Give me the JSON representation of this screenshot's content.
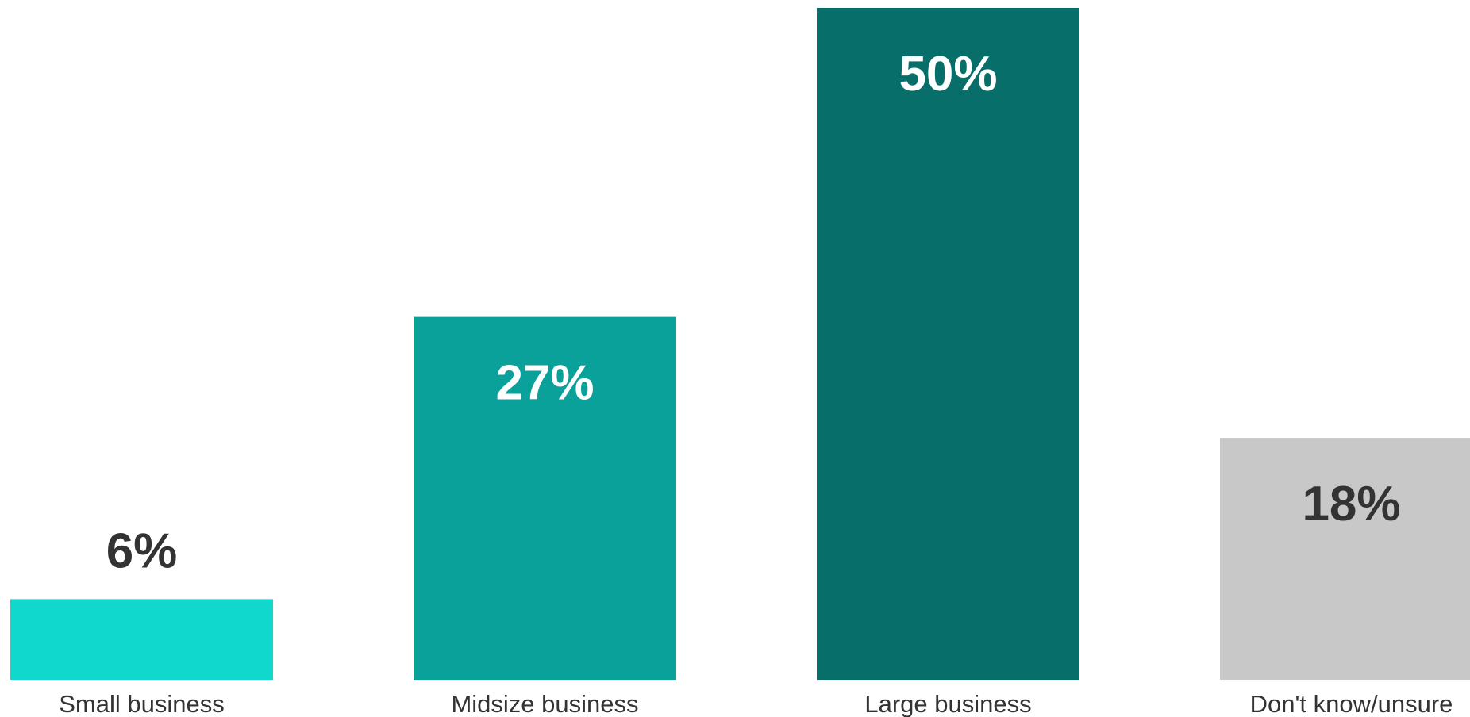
{
  "chart_data": {
    "type": "bar",
    "categories": [
      "Small business",
      "Midsize business",
      "Large business",
      "Don't know/unsure"
    ],
    "values": [
      6,
      27,
      50,
      18
    ],
    "value_labels": [
      "6%",
      "27%",
      "50%",
      "18%"
    ],
    "colors": [
      "#10d8cd",
      "#0ba19b",
      "#086e6a",
      "#c8c8c8"
    ],
    "label_colors": [
      "#333333",
      "#ffffff",
      "#ffffff",
      "#333333"
    ],
    "label_positions": [
      "outside",
      "inside",
      "inside",
      "inside"
    ],
    "title": "",
    "xlabel": "",
    "ylabel": "",
    "ylim": [
      0,
      50
    ],
    "grid": false,
    "legend": "none"
  }
}
